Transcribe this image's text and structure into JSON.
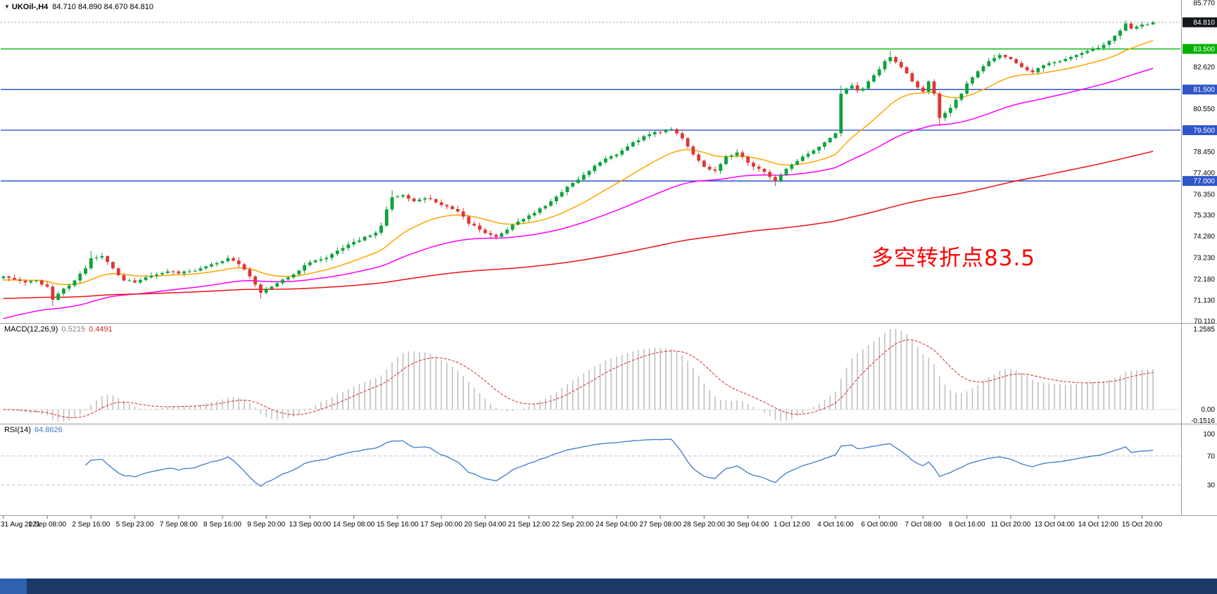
{
  "header": {
    "dropdown_icon": "▼",
    "symbol_timeframe": "UKOil-,H4",
    "ohlc": "84.710 84.890 84.670 84.810"
  },
  "chart_data": {
    "type": "candlestick",
    "symbol": "UKOil-",
    "timeframe": "H4",
    "ohlc_readout": {
      "open": "84.710",
      "high": "84.890",
      "low": "84.670",
      "close": "84.810"
    },
    "x_labels": [
      "31 Aug 2021",
      "1 Sep 08:00",
      "2 Sep 16:00",
      "5 Sep 23:00",
      "7 Sep 08:00",
      "8 Sep 16:00",
      "9 Sep 20:00",
      "13 Sep 00:00",
      "14 Sep 08:00",
      "15 Sep 16:00",
      "17 Sep 00:00",
      "20 Sep 04:00",
      "21 Sep 12:00",
      "22 Sep 20:00",
      "24 Sep 04:00",
      "27 Sep 08:00",
      "28 Sep 20:00",
      "30 Sep 04:00",
      "1 Oct 12:00",
      "4 Oct 16:00",
      "6 Oct 00:00",
      "7 Oct 08:00",
      "8 Oct 16:00",
      "11 Oct 20:00",
      "13 Oct 04:00",
      "14 Oct 12:00",
      "15 Oct 20:00"
    ],
    "candles_per_label": 8,
    "num_candles": 211,
    "noise_amp": 0.12,
    "price_keyframes": [
      [
        0,
        72.3
      ],
      [
        2,
        72.15
      ],
      [
        4,
        72.0
      ],
      [
        6,
        72.1
      ],
      [
        8,
        71.8
      ],
      [
        9,
        71.15
      ],
      [
        10,
        71.45
      ],
      [
        11,
        71.7
      ],
      [
        13,
        72.1
      ],
      [
        15,
        72.7
      ],
      [
        16,
        73.2
      ],
      [
        18,
        73.3
      ],
      [
        20,
        72.7
      ],
      [
        22,
        72.1
      ],
      [
        24,
        72.0
      ],
      [
        26,
        72.25
      ],
      [
        28,
        72.4
      ],
      [
        30,
        72.55
      ],
      [
        32,
        72.45
      ],
      [
        34,
        72.55
      ],
      [
        36,
        72.7
      ],
      [
        38,
        72.9
      ],
      [
        40,
        73.05
      ],
      [
        41,
        73.2
      ],
      [
        43,
        72.9
      ],
      [
        45,
        72.3
      ],
      [
        46,
        71.9
      ],
      [
        47,
        71.5
      ],
      [
        49,
        71.8
      ],
      [
        51,
        72.15
      ],
      [
        53,
        72.4
      ],
      [
        56,
        73.0
      ],
      [
        58,
        73.15
      ],
      [
        60,
        73.4
      ],
      [
        62,
        73.7
      ],
      [
        64,
        74.0
      ],
      [
        66,
        74.25
      ],
      [
        68,
        74.45
      ],
      [
        69,
        74.8
      ],
      [
        70,
        75.6
      ],
      [
        71,
        76.2
      ],
      [
        73,
        76.3
      ],
      [
        75,
        76.0
      ],
      [
        77,
        76.15
      ],
      [
        79,
        75.95
      ],
      [
        81,
        75.75
      ],
      [
        83,
        75.5
      ],
      [
        85,
        74.9
      ],
      [
        87,
        74.6
      ],
      [
        89,
        74.35
      ],
      [
        90,
        74.25
      ],
      [
        92,
        74.6
      ],
      [
        94,
        75.0
      ],
      [
        96,
        75.3
      ],
      [
        98,
        75.65
      ],
      [
        100,
        76.0
      ],
      [
        102,
        76.45
      ],
      [
        104,
        76.9
      ],
      [
        106,
        77.3
      ],
      [
        108,
        77.75
      ],
      [
        110,
        78.1
      ],
      [
        112,
        78.3
      ],
      [
        114,
        78.7
      ],
      [
        116,
        79.0
      ],
      [
        118,
        79.3
      ],
      [
        120,
        79.4
      ],
      [
        122,
        79.55
      ],
      [
        123,
        79.35
      ],
      [
        124,
        79.1
      ],
      [
        125,
        78.7
      ],
      [
        126,
        78.3
      ],
      [
        127,
        78.0
      ],
      [
        128,
        77.7
      ],
      [
        130,
        77.5
      ],
      [
        132,
        78.2
      ],
      [
        134,
        78.4
      ],
      [
        136,
        77.9
      ],
      [
        138,
        77.6
      ],
      [
        140,
        77.2
      ],
      [
        141,
        77.0
      ],
      [
        142,
        77.3
      ],
      [
        143,
        77.6
      ],
      [
        144,
        77.8
      ],
      [
        146,
        78.2
      ],
      [
        148,
        78.5
      ],
      [
        150,
        78.9
      ],
      [
        152,
        79.35
      ],
      [
        153,
        81.3
      ],
      [
        154,
        81.55
      ],
      [
        155,
        81.7
      ],
      [
        156,
        81.45
      ],
      [
        157,
        81.55
      ],
      [
        158,
        81.9
      ],
      [
        159,
        82.2
      ],
      [
        160,
        82.5
      ],
      [
        161,
        82.9
      ],
      [
        162,
        83.1
      ],
      [
        163,
        82.85
      ],
      [
        164,
        82.6
      ],
      [
        165,
        82.3
      ],
      [
        166,
        81.9
      ],
      [
        167,
        81.6
      ],
      [
        168,
        81.4
      ],
      [
        169,
        81.9
      ],
      [
        170,
        81.3
      ],
      [
        171,
        80.1
      ],
      [
        172,
        80.35
      ],
      [
        173,
        80.6
      ],
      [
        174,
        81.0
      ],
      [
        175,
        81.3
      ],
      [
        176,
        81.8
      ],
      [
        177,
        82.1
      ],
      [
        178,
        82.4
      ],
      [
        179,
        82.65
      ],
      [
        180,
        82.9
      ],
      [
        181,
        83.05
      ],
      [
        182,
        83.2
      ],
      [
        183,
        83.1
      ],
      [
        184,
        83.0
      ],
      [
        185,
        82.8
      ],
      [
        186,
        82.6
      ],
      [
        187,
        82.45
      ],
      [
        188,
        82.35
      ],
      [
        189,
        82.55
      ],
      [
        190,
        82.7
      ],
      [
        191,
        82.8
      ],
      [
        192,
        82.85
      ],
      [
        193,
        82.9
      ],
      [
        194,
        83.0
      ],
      [
        195,
        83.1
      ],
      [
        196,
        83.2
      ],
      [
        197,
        83.3
      ],
      [
        198,
        83.4
      ],
      [
        199,
        83.5
      ],
      [
        200,
        83.55
      ],
      [
        201,
        83.7
      ],
      [
        202,
        83.9
      ],
      [
        203,
        84.15
      ],
      [
        204,
        84.4
      ],
      [
        205,
        84.75
      ],
      [
        206,
        84.5
      ],
      [
        207,
        84.6
      ],
      [
        208,
        84.7
      ],
      [
        209,
        84.71
      ],
      [
        210,
        84.81
      ]
    ],
    "wick_overrides": [
      {
        "i": 9,
        "low": 70.85
      },
      {
        "i": 16,
        "high": 73.55
      },
      {
        "i": 41,
        "high": 73.35
      },
      {
        "i": 47,
        "low": 71.2
      },
      {
        "i": 71,
        "high": 76.55
      },
      {
        "i": 90,
        "low": 74.1
      },
      {
        "i": 122,
        "high": 79.65
      },
      {
        "i": 141,
        "low": 76.75
      },
      {
        "i": 153,
        "high": 81.7
      },
      {
        "i": 162,
        "high": 83.4
      },
      {
        "i": 171,
        "low": 79.7
      },
      {
        "i": 205,
        "high": 84.9
      },
      {
        "i": 210,
        "high": 84.89,
        "low": 84.67
      }
    ],
    "colors": {
      "up": "#0CA33C",
      "down": "#DF3636",
      "background": "#FFFFFF",
      "axis_text": "#000000",
      "separator": "#9A9A9A"
    },
    "y_axis": {
      "min": 70.11,
      "max": 85.77,
      "ticks": [
        {
          "label": "85.770"
        },
        {
          "label": "84.810",
          "bg": "#11151C",
          "fg": "#FFFFFF"
        },
        {
          "label": "83.500",
          "bg": "#00B200",
          "fg": "#FFFFFF"
        },
        {
          "label": "82.620"
        },
        {
          "label": "81.500",
          "bg": "#2F55C8",
          "fg": "#FFFFFF"
        },
        {
          "label": "80.550"
        },
        {
          "label": "79.500",
          "bg": "#2F55C8",
          "fg": "#FFFFFF"
        },
        {
          "label": "78.450"
        },
        {
          "label": "77.400"
        },
        {
          "label": "77.000",
          "bg": "#2F55C8",
          "fg": "#FFFFFF"
        },
        {
          "label": "76.350"
        },
        {
          "label": "75.330"
        },
        {
          "label": "74.280"
        },
        {
          "label": "73.230"
        },
        {
          "label": "72.180"
        },
        {
          "label": "71.130"
        },
        {
          "label": "70.110"
        }
      ]
    },
    "hlines": [
      {
        "price": 83.5,
        "color": "#00B200"
      },
      {
        "price": 81.5,
        "color": "#2F55C8"
      },
      {
        "price": 79.5,
        "color": "#2F55C8"
      },
      {
        "price": 77.0,
        "color": "#2F55C8"
      }
    ],
    "current_price": {
      "value": 84.81,
      "label": "84.810",
      "box_color": "#11151C"
    },
    "moving_averages": [
      {
        "period": 20,
        "color": "#FFA500",
        "seed": 72.1
      },
      {
        "period": 55,
        "color": "#FF00FF",
        "seed": 70.15
      },
      {
        "period": 200,
        "color": "#EE1111",
        "seed": 71.2
      }
    ],
    "annotation": {
      "text": "多空转折点83.5",
      "color": "#FF0000"
    },
    "macd": {
      "label": "MACD(12,26,9)",
      "main_value": "0.5215",
      "signal_value": "0.4491",
      "fast": 12,
      "slow": 26,
      "signal": 9,
      "axis_ticks": [
        "1.2585",
        "0.00",
        "-0.1516"
      ],
      "histogram_color": "#C0C0C0",
      "signal_color": "#D23030"
    },
    "rsi": {
      "label": "RSI(14)",
      "value": "64.8626",
      "period": 14,
      "levels": [
        70,
        30
      ],
      "axis_ticks": [
        "100",
        "70",
        "30"
      ],
      "line_color": "#3E7BC8",
      "level_line_color": "#BCC6D8"
    }
  },
  "bottom_bar": {
    "color": "#1C3A68",
    "accent_color": "#2E62B0"
  }
}
